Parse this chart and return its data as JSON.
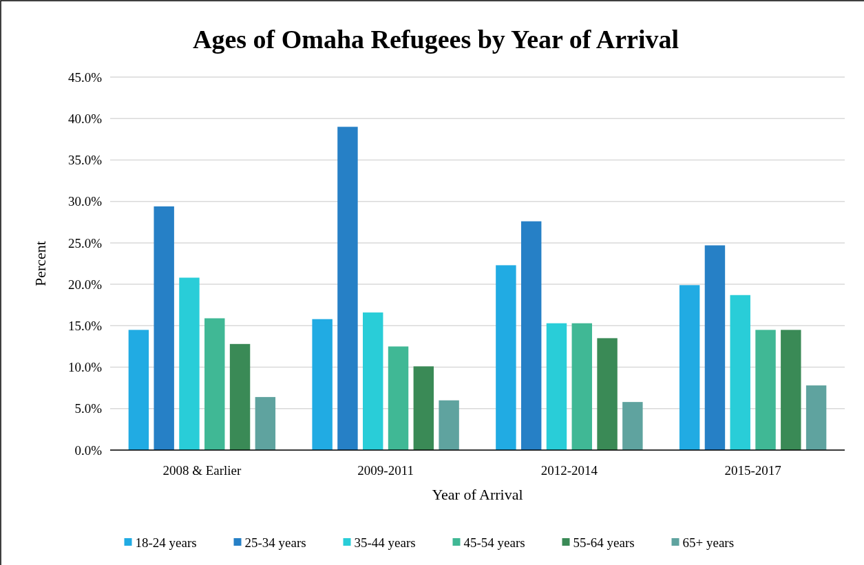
{
  "chart_data": {
    "type": "bar",
    "title": "Ages of Omaha Refugees by Year of Arrival",
    "xlabel": "Year of Arrival",
    "ylabel": "Percent",
    "categories": [
      "2008 & Earlier",
      "2009-2011",
      "2012-2014",
      "2015-2017"
    ],
    "series": [
      {
        "name": "18-24 years",
        "color": "#21abe3",
        "values": [
          14.5,
          15.8,
          22.3,
          19.9
        ]
      },
      {
        "name": "25-34 years",
        "color": "#2680c6",
        "values": [
          29.4,
          39.0,
          27.6,
          24.7
        ]
      },
      {
        "name": "35-44 years",
        "color": "#29cdd8",
        "values": [
          20.8,
          16.6,
          15.3,
          18.7
        ]
      },
      {
        "name": "45-54 years",
        "color": "#40b895",
        "values": [
          15.9,
          12.5,
          15.3,
          14.5
        ]
      },
      {
        "name": "55-64 years",
        "color": "#3a8a56",
        "values": [
          12.8,
          10.1,
          13.5,
          14.5
        ]
      },
      {
        "name": "65+ years",
        "color": "#5fa39f",
        "values": [
          6.4,
          6.0,
          5.8,
          7.8
        ]
      }
    ],
    "ylim": [
      0,
      45
    ],
    "yticks": [
      {
        "value": 0,
        "label": "0.0%"
      },
      {
        "value": 5,
        "label": "5.0%"
      },
      {
        "value": 10,
        "label": "10.0%"
      },
      {
        "value": 15,
        "label": "15.0%"
      },
      {
        "value": 20,
        "label": "20.0%"
      },
      {
        "value": 25,
        "label": "25.0%"
      },
      {
        "value": 30,
        "label": "30.0%"
      },
      {
        "value": 35,
        "label": "35.0%"
      },
      {
        "value": 40,
        "label": "40.0%"
      },
      {
        "value": 45,
        "label": "45.0%"
      }
    ],
    "grid": "y",
    "legend": "bottom"
  }
}
